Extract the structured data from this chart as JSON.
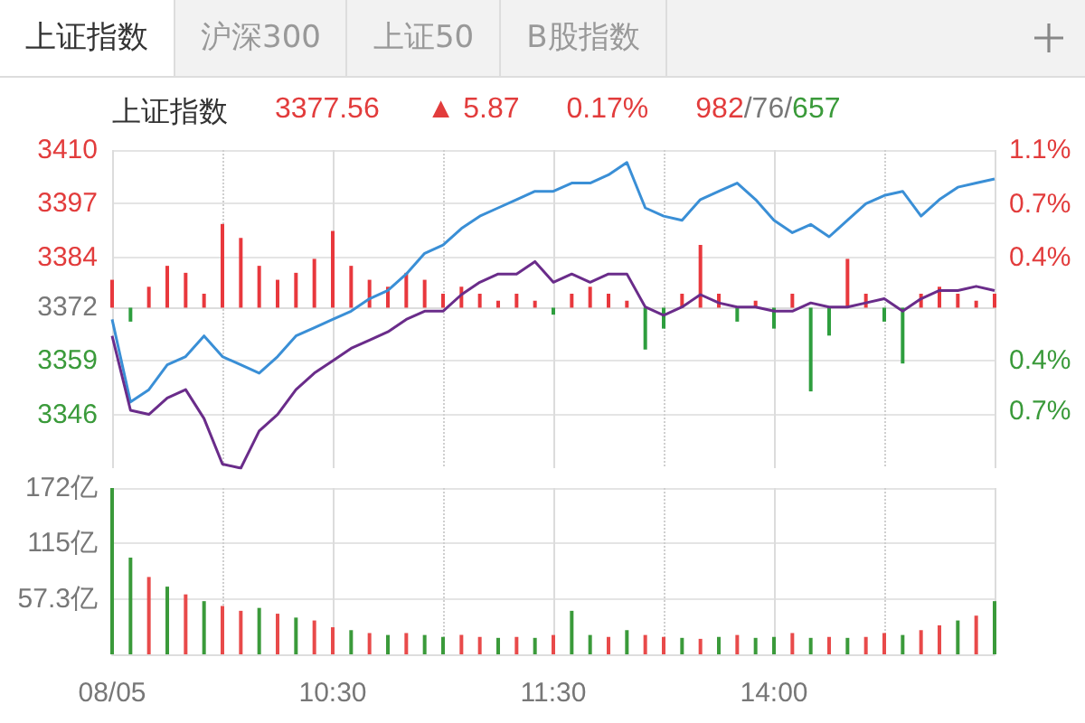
{
  "chart_data": [
    {
      "type": "line",
      "title": "上证指数",
      "annotations": [
        "上证指数",
        "沪深300",
        "上证50",
        "B股指数",
        "3377.56",
        "▲ 5.87",
        "0.17%",
        "982/76/657"
      ],
      "categories": [
        null,
        null,
        null,
        null,
        null,
        null,
        null,
        null,
        null,
        null,
        null,
        null,
        null,
        null,
        null,
        null,
        null,
        null,
        null,
        null,
        null,
        null,
        null,
        null,
        null,
        null,
        null,
        null,
        null,
        null,
        null,
        null,
        null,
        null,
        null,
        null,
        null,
        null,
        null,
        null,
        null,
        null,
        null,
        null,
        null,
        null,
        null,
        null,
        null
      ],
      "series": [
        {
          "color": "#3a8fd6",
          "values": [
            3369,
            3349,
            3352,
            3358,
            3360,
            3365,
            3360,
            3358,
            3356,
            3360,
            3365,
            3367,
            3369,
            3371,
            3374,
            3376,
            3380,
            3385,
            3387,
            3391,
            3394,
            3396,
            3398,
            3400,
            3400,
            3402,
            3402,
            3404,
            3407,
            3396,
            3394,
            3393,
            3398,
            3400,
            3402,
            3398,
            3393,
            3390,
            3392,
            3389,
            3393,
            3397,
            3399,
            3400,
            3394,
            3398,
            3401,
            3402,
            3403
          ]
        },
        {
          "color": "#6a2c8a",
          "values": [
            3365,
            3347,
            3346,
            3350,
            3352,
            3345,
            3334,
            3333,
            3342,
            3346,
            3352,
            3356,
            3359,
            3362,
            3364,
            3366,
            3369,
            3371,
            3371,
            3375,
            3378,
            3380,
            3380,
            3383,
            3378,
            3380,
            3378,
            3380,
            3380,
            3372,
            3370,
            3372,
            3375,
            3373,
            3372,
            3372,
            3371,
            3371,
            3373,
            3372,
            3372,
            3373,
            3374,
            3371,
            3374,
            3376,
            3376,
            3377,
            3376
          ]
        },
        {
          "type": "bar",
          "axis": "y2",
          "colors": [
            "#e8383d",
            "#2e9e3e",
            "#e8383d",
            "#e8383d",
            "#e8383d",
            "#e8383d",
            "#e8383d",
            "#e8383d",
            "#e8383d",
            "#e8383d",
            "#e8383d",
            "#e8383d",
            "#e8383d",
            "#e8383d",
            "#e8383d",
            "#e8383d",
            "#e8383d",
            "#e8383d",
            "#e8383d",
            "#e8383d",
            "#e8383d",
            "#e8383d",
            "#e8383d",
            "#e8383d",
            "#2e9e3e",
            "#e8383d",
            "#e8383d",
            "#e8383d",
            "#e8383d",
            "#2e9e3e",
            "#2e9e3e",
            "#e8383d",
            "#e8383d",
            "#e8383d",
            "#2e9e3e",
            "#e8383d",
            "#2e9e3e",
            "#e8383d",
            "#2e9e3e",
            "#2e9e3e",
            "#e8383d",
            "#e8383d",
            "#2e9e3e",
            "#2e9e3e",
            "#e8383d",
            "#e8383d",
            "#e8383d",
            "#e8383d",
            "#e8383d"
          ],
          "values": [
            0.2,
            -0.1,
            0.15,
            0.3,
            0.25,
            0.1,
            0.6,
            0.5,
            0.3,
            0.2,
            0.25,
            0.35,
            0.55,
            0.3,
            0.2,
            0.15,
            0.25,
            0.2,
            0.1,
            0.15,
            0.1,
            0.05,
            0.1,
            0.05,
            -0.05,
            0.1,
            0.15,
            0.1,
            0.05,
            -0.3,
            -0.15,
            0.1,
            0.45,
            0.1,
            -0.1,
            0.05,
            -0.15,
            0.1,
            -0.6,
            -0.2,
            0.35,
            0.1,
            -0.1,
            -0.4,
            0.1,
            0.15,
            0.1,
            0.05,
            0.1
          ]
        }
      ],
      "ylim": [
        3333,
        3410
      ],
      "yticks": [
        3346,
        3359,
        3372,
        3384,
        3397,
        3410
      ],
      "y2lim": [
        -1.15,
        1.13
      ],
      "y2ticks": [
        {
          "value": -0.74,
          "label": "0.7%"
        },
        {
          "value": -0.38,
          "label": "0.4%"
        },
        {
          "value": 0.36,
          "label": "0.4%"
        },
        {
          "value": 0.74,
          "label": "0.7%"
        },
        {
          "value": 1.13,
          "label": "1.1%"
        }
      ],
      "grid": true,
      "tick_labels": "y",
      "marker": "none",
      "line_style": "solid"
    },
    {
      "type": "bar",
      "categories": [
        "08/05",
        null,
        null,
        null,
        null,
        null,
        null,
        null,
        null,
        null,
        null,
        null,
        "10:30",
        null,
        null,
        null,
        null,
        null,
        null,
        null,
        null,
        null,
        null,
        null,
        "11:30",
        null,
        null,
        null,
        null,
        null,
        null,
        null,
        null,
        null,
        null,
        null,
        "14:00",
        null,
        null,
        null,
        null,
        null,
        null,
        null,
        null,
        null,
        null,
        null,
        null
      ],
      "values": [
        172,
        100,
        80,
        70,
        62,
        55,
        50,
        45,
        48,
        42,
        38,
        35,
        28,
        25,
        22,
        20,
        22,
        20,
        18,
        20,
        18,
        17,
        18,
        17,
        20,
        45,
        20,
        18,
        25,
        20,
        18,
        17,
        16,
        18,
        20,
        17,
        18,
        22,
        17,
        18,
        17,
        18,
        22,
        20,
        25,
        30,
        35,
        40,
        55
      ],
      "colors": [
        "#3a9a3a",
        "#3a9a3a",
        "#e84a4a",
        "#3a9a3a",
        "#e84a4a",
        "#3a9a3a",
        "#e84a4a",
        "#e84a4a",
        "#3a9a3a",
        "#e84a4a",
        "#3a9a3a",
        "#e84a4a",
        "#e84a4a",
        "#3a9a3a",
        "#e84a4a",
        "#3a9a3a",
        "#e84a4a",
        "#3a9a3a",
        "#3a9a3a",
        "#e84a4a",
        "#e84a4a",
        "#3a9a3a",
        "#e84a4a",
        "#3a9a3a",
        "#e84a4a",
        "#3a9a3a",
        "#3a9a3a",
        "#e84a4a",
        "#3a9a3a",
        "#e84a4a",
        "#e84a4a",
        "#3a9a3a",
        "#e84a4a",
        "#3a9a3a",
        "#e84a4a",
        "#3a9a3a",
        "#3a9a3a",
        "#e84a4a",
        "#3a9a3a",
        "#e84a4a",
        "#3a9a3a",
        "#e84a4a",
        "#e84a4a",
        "#3a9a3a",
        "#e84a4a",
        "#e84a4a",
        "#3a9a3a",
        "#e84a4a",
        "#3a9a3a"
      ],
      "ylim": [
        0,
        172
      ],
      "yticks": [
        {
          "value": 57.3,
          "label": "57.3亿"
        },
        {
          "value": 115,
          "label": "115亿"
        },
        {
          "value": 172,
          "label": "172亿"
        }
      ],
      "grid": true
    }
  ]
}
